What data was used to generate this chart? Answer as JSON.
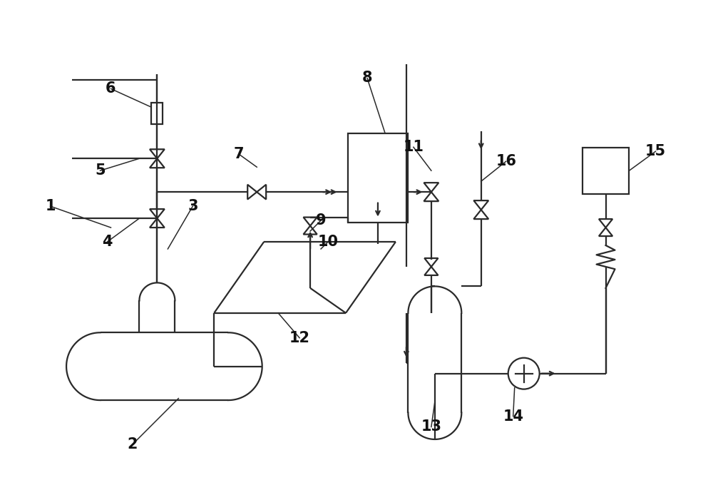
{
  "bg_color": "#ffffff",
  "line_color": "#2a2a2a",
  "line_width": 1.6,
  "fig_width": 10.0,
  "fig_height": 6.94
}
